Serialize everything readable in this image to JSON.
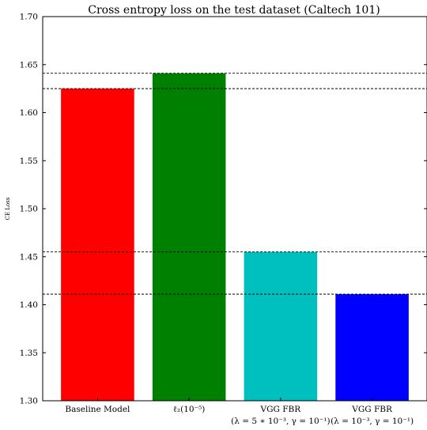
{
  "chart_data": {
    "type": "bar",
    "title": "Cross entropy loss on the test dataset (Caltech 101)",
    "xlabel": "",
    "ylabel": "CE Loss",
    "ylim": [
      1.3,
      1.7
    ],
    "yticks": [
      "1.30",
      "1.35",
      "1.40",
      "1.45",
      "1.50",
      "1.55",
      "1.60",
      "1.65",
      "1.70"
    ],
    "categories": [
      [
        "Baseline Model"
      ],
      [
        "ℓ₂(10⁻⁵)"
      ],
      [
        "VGG FBR",
        "(λ = 5 ∗ 10⁻³, γ = 10⁻¹)"
      ],
      [
        "VGG FBR",
        "(λ = 10⁻³, γ = 10⁻¹)"
      ]
    ],
    "values": [
      1.625,
      1.641,
      1.455,
      1.411
    ],
    "colors": [
      "#ff0000",
      "#008000",
      "#00bfbf",
      "#0000ff"
    ],
    "reference_lines": [
      1.641,
      1.625,
      1.455,
      1.411
    ],
    "grid": false
  }
}
